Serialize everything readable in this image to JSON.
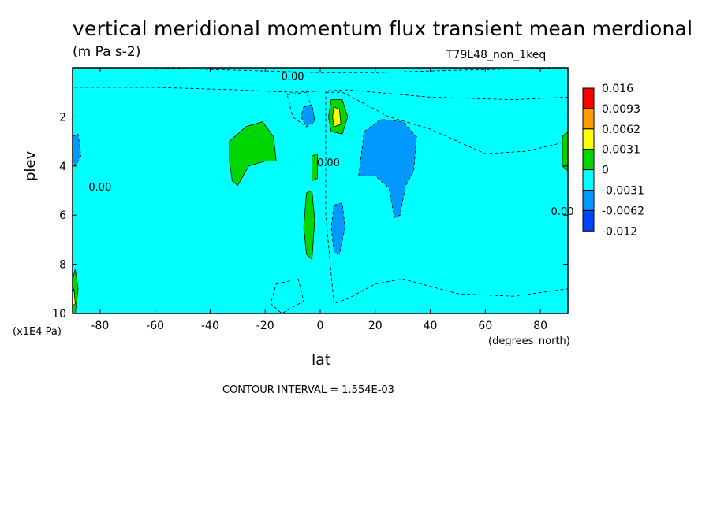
{
  "chart_data": {
    "type": "heatmap",
    "title": "vertical meridional momentum flux transient mean merdional",
    "units": "(m Pa s-2)",
    "run_label": "T79L48_non_1keq",
    "xlabel": "lat",
    "x_units": "(degrees_north)",
    "ylabel": "plev",
    "y_units": "(x1E4 Pa)",
    "footer": "CONTOUR INTERVAL = 1.554E-03",
    "xlim": [
      -90,
      90
    ],
    "ylim": [
      10,
      0
    ],
    "x_ticks": [
      "-80",
      "-60",
      "-40",
      "-20",
      "0",
      "20",
      "40",
      "60",
      "80"
    ],
    "x_tick_values": [
      -80,
      -60,
      -40,
      -20,
      0,
      20,
      40,
      60,
      80
    ],
    "y_ticks": [
      "2",
      "4",
      "6",
      "8",
      "10"
    ],
    "y_tick_values": [
      2,
      4,
      6,
      8,
      10
    ],
    "colorbar": {
      "labels": [
        "0.016",
        "0.0093",
        "0.0062",
        "0.0031",
        "0",
        "-0.0031",
        "-0.0062",
        "-0.012"
      ],
      "colors": [
        "#ff0000",
        "#ffa000",
        "#ffff00",
        "#00d700",
        "#00ffff",
        "#0099ff",
        "#0044ff"
      ]
    },
    "contour_labels": [
      {
        "text": "0.00",
        "x": -80,
        "y": 5.0
      },
      {
        "text": "0.00",
        "x": -10,
        "y": 0.5
      },
      {
        "text": "0.00",
        "x": 3,
        "y": 4.0
      },
      {
        "text": "0.00",
        "x": 88,
        "y": 6.0
      }
    ],
    "regions": [
      {
        "level": "-0.0031",
        "pts": [
          [
            -90,
            0
          ],
          [
            -60,
            0
          ],
          [
            -30,
            0.1
          ],
          [
            0,
            0.2
          ],
          [
            20,
            0.2
          ],
          [
            50,
            0.1
          ],
          [
            90,
            0
          ],
          [
            90,
            1.2
          ],
          [
            70,
            1.3
          ],
          [
            40,
            1.2
          ],
          [
            10,
            0.9
          ],
          [
            -10,
            1.0
          ],
          [
            -30,
            0.9
          ],
          [
            -60,
            0.8
          ],
          [
            -90,
            0.8
          ]
        ]
      },
      {
        "level": "-0.0031",
        "pts": [
          [
            2,
            1.0
          ],
          [
            8,
            1.0
          ],
          [
            15,
            1.4
          ],
          [
            25,
            2.0
          ],
          [
            40,
            2.5
          ],
          [
            50,
            3.0
          ],
          [
            60,
            3.5
          ],
          [
            75,
            3.4
          ],
          [
            90,
            3.0
          ],
          [
            90,
            9.0
          ],
          [
            70,
            9.3
          ],
          [
            50,
            9.2
          ],
          [
            30,
            8.6
          ],
          [
            20,
            8.8
          ],
          [
            10,
            9.4
          ],
          [
            5,
            9.6
          ],
          [
            2,
            6.0
          ]
        ]
      },
      {
        "level": "-0.0031",
        "pts": [
          [
            -12,
            1.1
          ],
          [
            -5,
            1.0
          ],
          [
            -2,
            2.0
          ],
          [
            -5,
            2.4
          ],
          [
            -10,
            2.0
          ]
        ]
      },
      {
        "level": "-0.0031",
        "pts": [
          [
            -16,
            8.8
          ],
          [
            -8,
            8.6
          ],
          [
            -6,
            9.5
          ],
          [
            -14,
            10
          ],
          [
            -18,
            9.6
          ]
        ]
      },
      {
        "level": "-0.0062",
        "pts": [
          [
            16,
            2.6
          ],
          [
            22,
            2.1
          ],
          [
            30,
            2.2
          ],
          [
            35,
            2.8
          ],
          [
            34,
            4.2
          ],
          [
            31,
            4.8
          ],
          [
            29,
            6.0
          ],
          [
            27,
            6.1
          ],
          [
            25,
            4.9
          ],
          [
            20,
            4.4
          ],
          [
            14,
            4.4
          ]
        ]
      },
      {
        "level": "-0.0062",
        "pts": [
          [
            5,
            5.6
          ],
          [
            8,
            5.5
          ],
          [
            9,
            6.5
          ],
          [
            7,
            7.6
          ],
          [
            5,
            7.5
          ],
          [
            4,
            6.5
          ]
        ]
      },
      {
        "level": "-0.0062",
        "pts": [
          [
            -6,
            1.6
          ],
          [
            -3,
            1.5
          ],
          [
            -2,
            2.2
          ],
          [
            -5,
            2.4
          ],
          [
            -7,
            2.0
          ]
        ]
      },
      {
        "level": "-0.0062",
        "pts": [
          [
            -90,
            2.8
          ],
          [
            -88,
            2.7
          ],
          [
            -87,
            3.6
          ],
          [
            -89,
            4.0
          ],
          [
            -90,
            3.8
          ]
        ]
      },
      {
        "level": "0.0031",
        "pts": [
          [
            -33,
            3.0
          ],
          [
            -27,
            2.4
          ],
          [
            -21,
            2.2
          ],
          [
            -17,
            2.8
          ],
          [
            -16,
            3.8
          ],
          [
            -20,
            3.8
          ],
          [
            -26,
            4.0
          ],
          [
            -30,
            4.8
          ],
          [
            -32,
            4.6
          ],
          [
            -33,
            3.8
          ]
        ]
      },
      {
        "level": "0.0031",
        "pts": [
          [
            -5,
            5.1
          ],
          [
            -3,
            5.0
          ],
          [
            -2,
            6.2
          ],
          [
            -3,
            7.8
          ],
          [
            -5,
            7.6
          ],
          [
            -6,
            6.5
          ]
        ]
      },
      {
        "level": "0.0031",
        "pts": [
          [
            -3,
            3.6
          ],
          [
            -1,
            3.5
          ],
          [
            -1,
            4.5
          ],
          [
            -3,
            4.6
          ]
        ]
      },
      {
        "level": "0.0031",
        "pts": [
          [
            4,
            1.3
          ],
          [
            8,
            1.3
          ],
          [
            10,
            2.0
          ],
          [
            8,
            2.7
          ],
          [
            4,
            2.6
          ],
          [
            3,
            2.0
          ]
        ]
      },
      {
        "level": "0.0031",
        "pts": [
          [
            -90,
            8.6
          ],
          [
            -89,
            8.2
          ],
          [
            -88,
            9.0
          ],
          [
            -89,
            10
          ],
          [
            -90,
            10
          ]
        ]
      },
      {
        "level": "0.0031",
        "pts": [
          [
            88,
            2.8
          ],
          [
            90,
            2.6
          ],
          [
            90,
            4.2
          ],
          [
            88,
            4.0
          ]
        ]
      },
      {
        "level": "0.0062",
        "pts": [
          [
            5,
            1.6
          ],
          [
            7,
            1.7
          ],
          [
            7.5,
            2.3
          ],
          [
            5,
            2.4
          ],
          [
            4.5,
            2.0
          ]
        ]
      },
      {
        "level": "0.0062",
        "pts": [
          [
            -90,
            9.2
          ],
          [
            -89.5,
            9.0
          ],
          [
            -89,
            9.6
          ],
          [
            -90,
            9.7
          ]
        ]
      }
    ]
  }
}
